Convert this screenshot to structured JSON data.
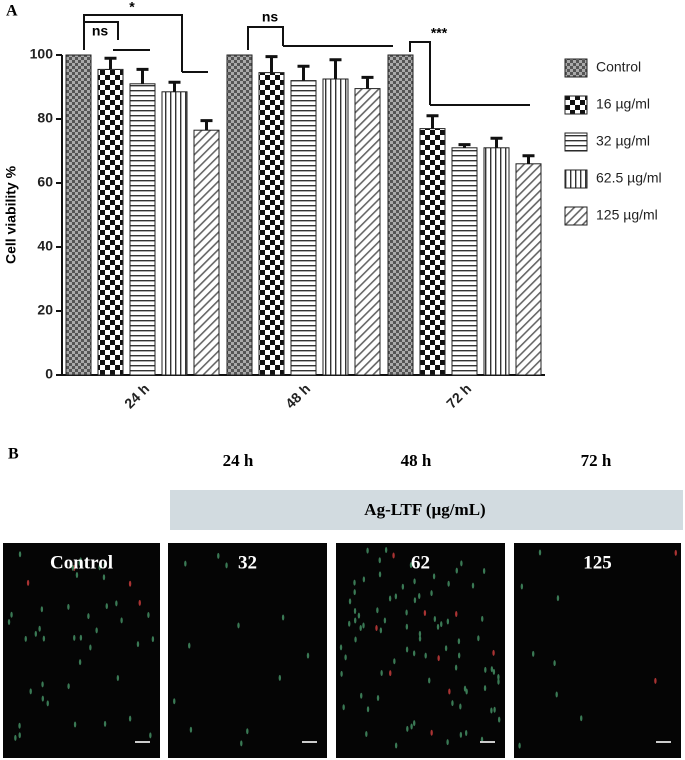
{
  "chart_data": {
    "type": "bar",
    "panel_label": "A",
    "y_label": "Cell viability %",
    "categories": [
      "24 h",
      "48 h",
      "72 h"
    ],
    "series": [
      {
        "name": "Control",
        "color": "#555555",
        "pattern": "dark-checker",
        "values": [
          100,
          100,
          100
        ]
      },
      {
        "name": "16 µg/ml",
        "color": "#111111",
        "pattern": "checker",
        "values": [
          95.5,
          94.5,
          77
        ],
        "errors": [
          3.5,
          5,
          4
        ]
      },
      {
        "name": "32 µg/ml",
        "color": "#333333",
        "pattern": "horizontal",
        "values": [
          91,
          92,
          71
        ],
        "errors": [
          4.5,
          4.5,
          1
        ]
      },
      {
        "name": "62.5 µg/ml",
        "color": "#333333",
        "pattern": "vertical",
        "values": [
          88.5,
          92.5,
          71
        ],
        "errors": [
          3,
          6,
          3
        ]
      },
      {
        "name": "125 µg/ml",
        "color": "#666666",
        "pattern": "diagonal",
        "values": [
          76.5,
          89.5,
          66
        ],
        "errors": [
          3,
          3.5,
          2.5
        ]
      }
    ],
    "ylim": [
      0,
      100
    ],
    "yticks": [
      0,
      20,
      40,
      60,
      80,
      100
    ],
    "annotations": [
      "ns",
      "*",
      "ns",
      "***"
    ]
  },
  "panel_b": {
    "label": "B",
    "times": [
      "24 h",
      "48 h",
      "72 h"
    ],
    "treatment": "Ag-LTF (µg/mL)",
    "images": [
      "Control",
      "32",
      "62",
      "125"
    ]
  }
}
